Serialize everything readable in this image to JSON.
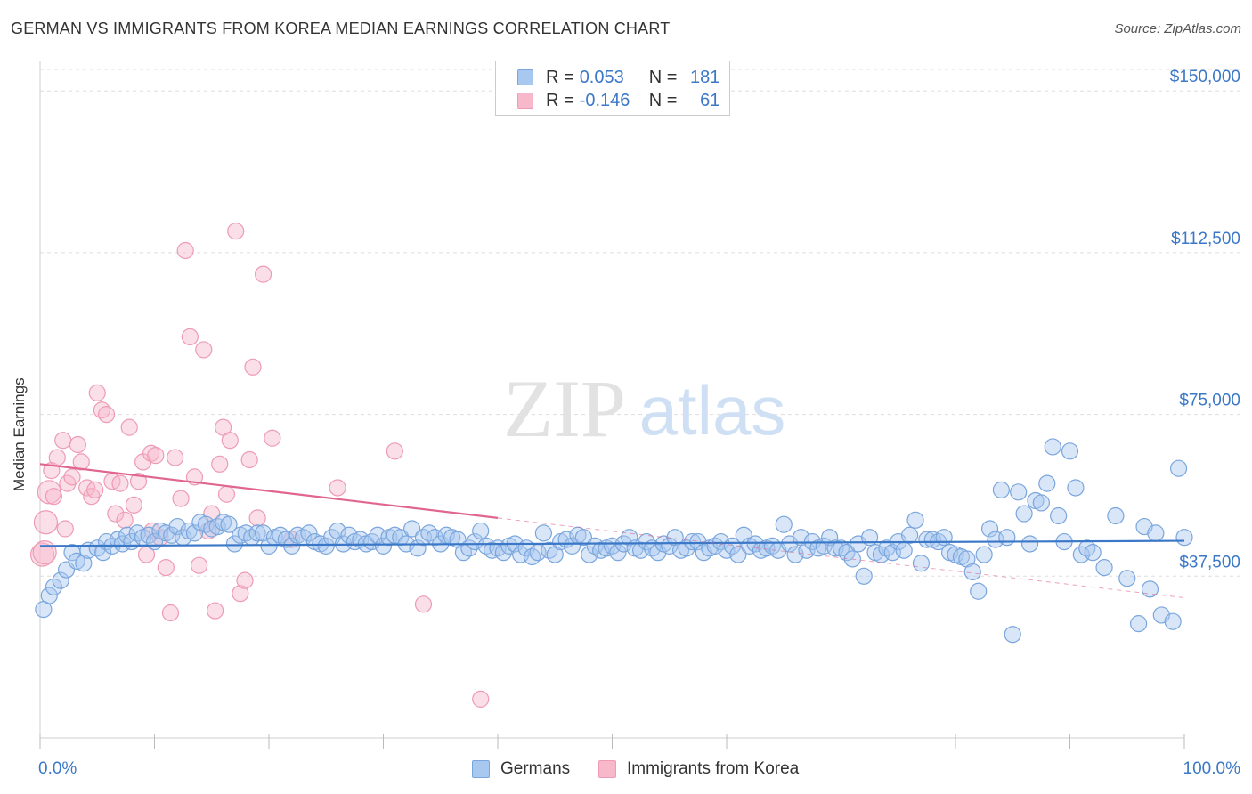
{
  "title": "GERMAN VS IMMIGRANTS FROM KOREA MEDIAN EARNINGS CORRELATION CHART",
  "source": "Source: ZipAtlas.com",
  "watermark": {
    "zip": "ZIP",
    "atlas": "atlas"
  },
  "colors": {
    "blue": "#3b78c7",
    "blue_fill": "#a9c8f0",
    "blue_stroke": "#7aa6dd",
    "pink": "#e06691",
    "pink_fill": "#f7b8cb",
    "pink_stroke": "#ee9bb4",
    "grid": "#dddddd",
    "axis_text": "#3b78c7"
  },
  "legend_top": [
    {
      "r_label": "R =",
      "r_value": "0.053",
      "n_label": "N =",
      "n_value": "181"
    },
    {
      "r_label": "R =",
      "r_value": "-0.146",
      "n_label": "N =",
      "n_value": "61"
    }
  ],
  "legend_bottom": [
    "Germans",
    "Immigrants from Korea"
  ],
  "chart_data": {
    "type": "scatter",
    "xlabel": "",
    "ylabel": "Median Earnings",
    "xlim": [
      0,
      100
    ],
    "ylim": [
      0,
      155000
    ],
    "x_tick_labels": {
      "left": "0.0%",
      "right": "100.0%"
    },
    "y_ticks": [
      {
        "value": 37500,
        "label": "$37,500"
      },
      {
        "value": 75000,
        "label": "$75,000"
      },
      {
        "value": 112500,
        "label": "$112,500"
      },
      {
        "value": 150000,
        "label": "$150,000"
      }
    ],
    "grid": "horizontal dashed",
    "series": [
      {
        "name": "Germans",
        "color": "blue",
        "trend": {
          "x": [
            0,
            100
          ],
          "y": [
            44500,
            45700
          ],
          "dashed_extension": false
        },
        "points": [
          [
            0.3,
            29800
          ],
          [
            0.8,
            33000
          ],
          [
            1.2,
            35000
          ],
          [
            1.8,
            36500
          ],
          [
            2.3,
            39000
          ],
          [
            2.8,
            43000
          ],
          [
            3.2,
            41000
          ],
          [
            3.8,
            40500
          ],
          [
            4.2,
            43500
          ],
          [
            5.0,
            44000
          ],
          [
            5.5,
            43000
          ],
          [
            5.8,
            45500
          ],
          [
            6.3,
            44500
          ],
          [
            6.8,
            46000
          ],
          [
            7.2,
            45000
          ],
          [
            7.6,
            47000
          ],
          [
            8.0,
            45500
          ],
          [
            8.5,
            47500
          ],
          [
            9.0,
            46500
          ],
          [
            9.5,
            47000
          ],
          [
            10.0,
            45500
          ],
          [
            10.5,
            48000
          ],
          [
            11.0,
            47500
          ],
          [
            11.5,
            47000
          ],
          [
            12.0,
            49000
          ],
          [
            12.5,
            46500
          ],
          [
            13.0,
            48000
          ],
          [
            13.5,
            47500
          ],
          [
            14.0,
            50000
          ],
          [
            14.5,
            49500
          ],
          [
            15.0,
            48500
          ],
          [
            15.5,
            49000
          ],
          [
            16.0,
            50000
          ],
          [
            16.5,
            49500
          ],
          [
            17.0,
            45000
          ],
          [
            17.5,
            47000
          ],
          [
            18.0,
            47500
          ],
          [
            18.5,
            46500
          ],
          [
            19.0,
            47500
          ],
          [
            19.5,
            47500
          ],
          [
            20.0,
            44500
          ],
          [
            20.5,
            46500
          ],
          [
            21.0,
            47000
          ],
          [
            21.5,
            46000
          ],
          [
            22.0,
            44500
          ],
          [
            22.5,
            47000
          ],
          [
            23.0,
            46500
          ],
          [
            23.5,
            47500
          ],
          [
            24.0,
            45500
          ],
          [
            24.5,
            45000
          ],
          [
            25.0,
            44500
          ],
          [
            25.5,
            46500
          ],
          [
            26.0,
            48000
          ],
          [
            26.5,
            45000
          ],
          [
            27.0,
            47000
          ],
          [
            27.5,
            45500
          ],
          [
            28.0,
            46000
          ],
          [
            28.5,
            45000
          ],
          [
            29.0,
            45500
          ],
          [
            29.5,
            47000
          ],
          [
            30.0,
            44500
          ],
          [
            30.5,
            46500
          ],
          [
            31.0,
            47000
          ],
          [
            31.5,
            46500
          ],
          [
            32.0,
            45000
          ],
          [
            32.5,
            48500
          ],
          [
            33.0,
            44000
          ],
          [
            33.5,
            46500
          ],
          [
            34.0,
            47500
          ],
          [
            34.5,
            46500
          ],
          [
            35.0,
            45000
          ],
          [
            35.5,
            47000
          ],
          [
            36.0,
            46500
          ],
          [
            36.5,
            46000
          ],
          [
            37.0,
            43000
          ],
          [
            37.5,
            44000
          ],
          [
            38.0,
            45500
          ],
          [
            38.5,
            48000
          ],
          [
            39.0,
            44500
          ],
          [
            39.5,
            43500
          ],
          [
            40.0,
            44000
          ],
          [
            40.5,
            43000
          ],
          [
            41.0,
            44500
          ],
          [
            41.5,
            45000
          ],
          [
            42.0,
            42500
          ],
          [
            42.5,
            44000
          ],
          [
            43.0,
            42000
          ],
          [
            43.5,
            43000
          ],
          [
            44.0,
            47500
          ],
          [
            44.5,
            43500
          ],
          [
            45.0,
            42500
          ],
          [
            45.5,
            45500
          ],
          [
            46.0,
            46000
          ],
          [
            46.5,
            44500
          ],
          [
            47.0,
            47000
          ],
          [
            47.5,
            46500
          ],
          [
            48.0,
            42500
          ],
          [
            48.5,
            44500
          ],
          [
            49.0,
            43500
          ],
          [
            49.5,
            44000
          ],
          [
            50.0,
            44500
          ],
          [
            50.5,
            43000
          ],
          [
            51.0,
            45000
          ],
          [
            51.5,
            46500
          ],
          [
            52.0,
            44000
          ],
          [
            52.5,
            43500
          ],
          [
            53.0,
            45500
          ],
          [
            53.5,
            44000
          ],
          [
            54.0,
            43000
          ],
          [
            54.5,
            45000
          ],
          [
            55.0,
            44500
          ],
          [
            55.5,
            46500
          ],
          [
            56.0,
            43500
          ],
          [
            56.5,
            44000
          ],
          [
            57.0,
            45500
          ],
          [
            57.5,
            45500
          ],
          [
            58.0,
            43000
          ],
          [
            58.5,
            44000
          ],
          [
            59.0,
            44500
          ],
          [
            59.5,
            45500
          ],
          [
            60.0,
            43500
          ],
          [
            60.5,
            44500
          ],
          [
            61.0,
            42500
          ],
          [
            61.5,
            47000
          ],
          [
            62.0,
            44500
          ],
          [
            62.5,
            45000
          ],
          [
            63.0,
            43500
          ],
          [
            63.5,
            44000
          ],
          [
            64.0,
            44500
          ],
          [
            64.5,
            43500
          ],
          [
            65.0,
            49500
          ],
          [
            65.5,
            45000
          ],
          [
            66.0,
            42500
          ],
          [
            66.5,
            46500
          ],
          [
            67.0,
            43500
          ],
          [
            67.5,
            45500
          ],
          [
            68.0,
            44000
          ],
          [
            68.5,
            44500
          ],
          [
            69.0,
            46500
          ],
          [
            69.5,
            44000
          ],
          [
            70.0,
            44000
          ],
          [
            70.5,
            43000
          ],
          [
            71.0,
            41500
          ],
          [
            71.5,
            45000
          ],
          [
            72.0,
            37500
          ],
          [
            72.5,
            46500
          ],
          [
            73.0,
            43000
          ],
          [
            73.5,
            42500
          ],
          [
            74.0,
            44000
          ],
          [
            74.5,
            43000
          ],
          [
            75.0,
            45500
          ],
          [
            75.5,
            43500
          ],
          [
            76.0,
            47000
          ],
          [
            76.5,
            50500
          ],
          [
            77.0,
            40500
          ],
          [
            77.5,
            46000
          ],
          [
            78.0,
            46000
          ],
          [
            78.5,
            45500
          ],
          [
            79.0,
            46500
          ],
          [
            79.5,
            43000
          ],
          [
            80.0,
            42500
          ],
          [
            80.5,
            42000
          ],
          [
            81.0,
            41500
          ],
          [
            81.5,
            38500
          ],
          [
            82.0,
            34000
          ],
          [
            82.5,
            42500
          ],
          [
            83.0,
            48500
          ],
          [
            83.5,
            46000
          ],
          [
            84.0,
            57500
          ],
          [
            84.5,
            46500
          ],
          [
            85.0,
            24000
          ],
          [
            85.5,
            57000
          ],
          [
            86.0,
            52000
          ],
          [
            86.5,
            45000
          ],
          [
            87.0,
            55000
          ],
          [
            87.5,
            54500
          ],
          [
            88.0,
            59000
          ],
          [
            88.5,
            67500
          ],
          [
            89.0,
            51500
          ],
          [
            89.5,
            45500
          ],
          [
            90.0,
            66500
          ],
          [
            90.5,
            58000
          ],
          [
            91.0,
            42500
          ],
          [
            91.5,
            44000
          ],
          [
            92.0,
            43000
          ],
          [
            93.0,
            39500
          ],
          [
            94.0,
            51500
          ],
          [
            95.0,
            37000
          ],
          [
            96.0,
            26500
          ],
          [
            96.5,
            49000
          ],
          [
            97.0,
            34500
          ],
          [
            97.5,
            47500
          ],
          [
            98.0,
            28500
          ],
          [
            99.0,
            27000
          ],
          [
            99.5,
            62500
          ],
          [
            100.0,
            46500
          ]
        ]
      },
      {
        "name": "Immigrants from Korea",
        "color": "pink",
        "trend": {
          "x": [
            0,
            40
          ],
          "y": [
            63500,
            51000
          ],
          "dashed_extension": true,
          "dashed_x": [
            40,
            100
          ],
          "dashed_y": [
            51000,
            32500
          ]
        },
        "points": [
          [
            0.2,
            42500
          ],
          [
            0.5,
            50000
          ],
          [
            0.8,
            57000
          ],
          [
            1.0,
            62000
          ],
          [
            1.2,
            56000
          ],
          [
            1.5,
            65000
          ],
          [
            2.0,
            69000
          ],
          [
            2.4,
            59000
          ],
          [
            2.8,
            60500
          ],
          [
            3.3,
            68000
          ],
          [
            3.6,
            64000
          ],
          [
            4.1,
            58000
          ],
          [
            4.5,
            56000
          ],
          [
            5.0,
            80000
          ],
          [
            5.4,
            76000
          ],
          [
            5.8,
            75000
          ],
          [
            6.3,
            59500
          ],
          [
            6.6,
            52000
          ],
          [
            7.0,
            59000
          ],
          [
            7.4,
            50500
          ],
          [
            7.8,
            72000
          ],
          [
            8.2,
            54000
          ],
          [
            8.6,
            59500
          ],
          [
            9.0,
            64000
          ],
          [
            9.3,
            42500
          ],
          [
            9.7,
            66000
          ],
          [
            10.1,
            65500
          ],
          [
            10.5,
            46500
          ],
          [
            11.0,
            39500
          ],
          [
            11.4,
            29000
          ],
          [
            11.8,
            65000
          ],
          [
            12.3,
            55500
          ],
          [
            12.7,
            113000
          ],
          [
            13.1,
            93000
          ],
          [
            13.5,
            60500
          ],
          [
            13.9,
            40000
          ],
          [
            14.3,
            90000
          ],
          [
            15.0,
            52000
          ],
          [
            15.3,
            29500
          ],
          [
            15.7,
            63500
          ],
          [
            16.0,
            72000
          ],
          [
            16.3,
            56500
          ],
          [
            16.6,
            69000
          ],
          [
            17.1,
            117500
          ],
          [
            17.5,
            33500
          ],
          [
            17.9,
            36500
          ],
          [
            18.3,
            64500
          ],
          [
            18.6,
            86000
          ],
          [
            19.0,
            51000
          ],
          [
            19.5,
            107500
          ],
          [
            20.3,
            69500
          ],
          [
            22.0,
            46000
          ],
          [
            26.0,
            58000
          ],
          [
            31.0,
            66500
          ],
          [
            33.5,
            31000
          ],
          [
            38.5,
            9000
          ],
          [
            0.4,
            43000
          ],
          [
            2.2,
            48500
          ],
          [
            4.8,
            57500
          ],
          [
            9.8,
            48000
          ],
          [
            14.7,
            48000
          ]
        ]
      }
    ]
  }
}
